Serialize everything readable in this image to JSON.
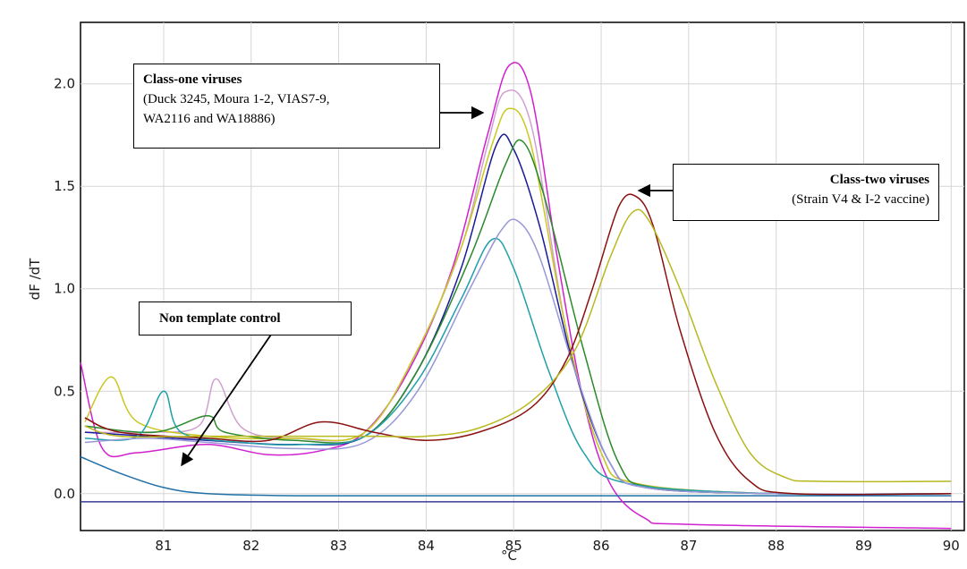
{
  "chart_data": {
    "type": "line",
    "title": "",
    "xlabel": "°C",
    "ylabel": "dF /dT",
    "xlim": [
      80.05,
      90.15
    ],
    "ylim": [
      -0.18,
      2.3
    ],
    "x_ticks": [
      81,
      82,
      83,
      84,
      85,
      86,
      87,
      88,
      89,
      90
    ],
    "y_ticks": [
      0.0,
      0.5,
      1.0,
      1.5,
      2.0
    ],
    "y_tick_labels": [
      "0.0",
      "0.5",
      "1.0",
      "1.5",
      "2.0"
    ],
    "x_tick_labels": [
      "81",
      "82",
      "83",
      "84",
      "85",
      "86",
      "87",
      "88",
      "89",
      "90"
    ],
    "grid": true,
    "baseline_y": -0.04,
    "series": [
      {
        "color": "#d020d0",
        "points": [
          [
            80.05,
            0.64
          ],
          [
            80.3,
            0.22
          ],
          [
            80.7,
            0.2
          ],
          [
            81.5,
            0.24
          ],
          [
            82.2,
            0.19
          ],
          [
            82.8,
            0.21
          ],
          [
            83.3,
            0.3
          ],
          [
            83.8,
            0.6
          ],
          [
            84.3,
            1.1
          ],
          [
            84.7,
            1.75
          ],
          [
            84.95,
            2.09
          ],
          [
            85.2,
            1.95
          ],
          [
            85.5,
            1.15
          ],
          [
            85.8,
            0.45
          ],
          [
            86.1,
            0.05
          ],
          [
            86.5,
            -0.12
          ],
          [
            87.0,
            -0.15
          ],
          [
            90.0,
            -0.17
          ]
        ]
      },
      {
        "color": "#d0a0d0",
        "points": [
          [
            80.1,
            0.3
          ],
          [
            80.8,
            0.3
          ],
          [
            81.4,
            0.33
          ],
          [
            81.6,
            0.56
          ],
          [
            81.9,
            0.32
          ],
          [
            82.5,
            0.27
          ],
          [
            83.3,
            0.3
          ],
          [
            83.9,
            0.7
          ],
          [
            84.4,
            1.2
          ],
          [
            84.7,
            1.7
          ],
          [
            84.9,
            1.96
          ],
          [
            85.2,
            1.8
          ],
          [
            85.6,
            0.8
          ],
          [
            86.0,
            0.2
          ],
          [
            86.4,
            0.05
          ],
          [
            88.0,
            0.0
          ],
          [
            90.0,
            0.0
          ]
        ]
      },
      {
        "color": "#c8c820",
        "points": [
          [
            80.1,
            0.35
          ],
          [
            80.4,
            0.57
          ],
          [
            80.7,
            0.35
          ],
          [
            81.5,
            0.28
          ],
          [
            82.5,
            0.27
          ],
          [
            83.3,
            0.3
          ],
          [
            83.9,
            0.7
          ],
          [
            84.4,
            1.2
          ],
          [
            84.75,
            1.7
          ],
          [
            84.95,
            1.88
          ],
          [
            85.2,
            1.7
          ],
          [
            85.6,
            0.8
          ],
          [
            86.0,
            0.2
          ],
          [
            86.4,
            0.05
          ],
          [
            88.0,
            0.0
          ],
          [
            90.0,
            0.0
          ]
        ]
      },
      {
        "color": "#1a1a9a",
        "points": [
          [
            80.1,
            0.3
          ],
          [
            80.8,
            0.28
          ],
          [
            81.5,
            0.26
          ],
          [
            82.5,
            0.24
          ],
          [
            83.3,
            0.28
          ],
          [
            83.9,
            0.6
          ],
          [
            84.4,
            1.1
          ],
          [
            84.8,
            1.7
          ],
          [
            85.0,
            1.68
          ],
          [
            85.3,
            1.3
          ],
          [
            85.7,
            0.6
          ],
          [
            86.1,
            0.15
          ],
          [
            86.5,
            0.03
          ],
          [
            88.0,
            0.0
          ],
          [
            90.0,
            0.0
          ]
        ]
      },
      {
        "color": "#2a8a2a",
        "points": [
          [
            80.1,
            0.33
          ],
          [
            80.9,
            0.3
          ],
          [
            81.5,
            0.38
          ],
          [
            81.7,
            0.3
          ],
          [
            82.5,
            0.26
          ],
          [
            83.3,
            0.28
          ],
          [
            83.9,
            0.6
          ],
          [
            84.5,
            1.15
          ],
          [
            84.9,
            1.6
          ],
          [
            85.1,
            1.72
          ],
          [
            85.35,
            1.45
          ],
          [
            85.8,
            0.7
          ],
          [
            86.2,
            0.15
          ],
          [
            86.6,
            0.03
          ],
          [
            88.0,
            0.0
          ],
          [
            90.0,
            0.0
          ]
        ]
      },
      {
        "color": "#20a0a8",
        "points": [
          [
            80.1,
            0.27
          ],
          [
            80.7,
            0.28
          ],
          [
            81.0,
            0.5
          ],
          [
            81.2,
            0.3
          ],
          [
            81.9,
            0.25
          ],
          [
            82.6,
            0.24
          ],
          [
            83.3,
            0.28
          ],
          [
            83.9,
            0.55
          ],
          [
            84.4,
            0.95
          ],
          [
            84.75,
            1.24
          ],
          [
            85.0,
            1.1
          ],
          [
            85.4,
            0.6
          ],
          [
            85.8,
            0.2
          ],
          [
            86.3,
            0.05
          ],
          [
            88.0,
            0.0
          ],
          [
            90.0,
            0.0
          ]
        ]
      },
      {
        "color": "#9898d8",
        "points": [
          [
            80.1,
            0.25
          ],
          [
            80.8,
            0.27
          ],
          [
            81.5,
            0.25
          ],
          [
            82.5,
            0.22
          ],
          [
            83.3,
            0.25
          ],
          [
            83.9,
            0.5
          ],
          [
            84.5,
            1.0
          ],
          [
            84.85,
            1.28
          ],
          [
            85.05,
            1.33
          ],
          [
            85.3,
            1.15
          ],
          [
            85.7,
            0.6
          ],
          [
            86.1,
            0.15
          ],
          [
            86.5,
            0.03
          ],
          [
            88.0,
            0.0
          ],
          [
            90.0,
            0.0
          ]
        ]
      },
      {
        "color": "#8a1010",
        "points": [
          [
            80.1,
            0.37
          ],
          [
            80.5,
            0.3
          ],
          [
            81.5,
            0.27
          ],
          [
            82.2,
            0.26
          ],
          [
            82.8,
            0.35
          ],
          [
            83.4,
            0.3
          ],
          [
            84.0,
            0.26
          ],
          [
            84.6,
            0.3
          ],
          [
            85.2,
            0.42
          ],
          [
            85.6,
            0.65
          ],
          [
            85.9,
            1.0
          ],
          [
            86.2,
            1.4
          ],
          [
            86.4,
            1.45
          ],
          [
            86.6,
            1.3
          ],
          [
            86.9,
            0.8
          ],
          [
            87.3,
            0.3
          ],
          [
            87.7,
            0.06
          ],
          [
            88.2,
            0.0
          ],
          [
            90.0,
            0.0
          ]
        ]
      },
      {
        "color": "#b8b820",
        "points": [
          [
            80.1,
            0.33
          ],
          [
            80.5,
            0.28
          ],
          [
            81.5,
            0.28
          ],
          [
            82.5,
            0.28
          ],
          [
            83.4,
            0.28
          ],
          [
            84.0,
            0.28
          ],
          [
            84.6,
            0.32
          ],
          [
            85.2,
            0.45
          ],
          [
            85.7,
            0.7
          ],
          [
            86.1,
            1.15
          ],
          [
            86.35,
            1.37
          ],
          [
            86.55,
            1.33
          ],
          [
            86.9,
            1.0
          ],
          [
            87.3,
            0.55
          ],
          [
            87.7,
            0.2
          ],
          [
            88.1,
            0.08
          ],
          [
            88.5,
            0.06
          ],
          [
            90.0,
            0.06
          ]
        ]
      },
      {
        "color": "#2070a8",
        "points": [
          [
            80.05,
            0.18
          ],
          [
            80.5,
            0.1
          ],
          [
            81.0,
            0.03
          ],
          [
            81.5,
            0.0
          ],
          [
            82.5,
            -0.01
          ],
          [
            84.0,
            -0.01
          ],
          [
            86.0,
            -0.01
          ],
          [
            88.0,
            -0.01
          ],
          [
            90.0,
            -0.01
          ]
        ]
      }
    ]
  },
  "annotations": [
    {
      "id": "class-one",
      "lines": [
        "Class-one viruses",
        "(Duck 3245, Moura 1-2, VIAS7-9,",
        "WA2116 and WA18886)"
      ]
    },
    {
      "id": "class-two",
      "lines": [
        "Class-two viruses",
        "(Strain V4 & I-2 vaccine)"
      ]
    },
    {
      "id": "ntc",
      "lines": [
        "Non template control"
      ]
    }
  ]
}
